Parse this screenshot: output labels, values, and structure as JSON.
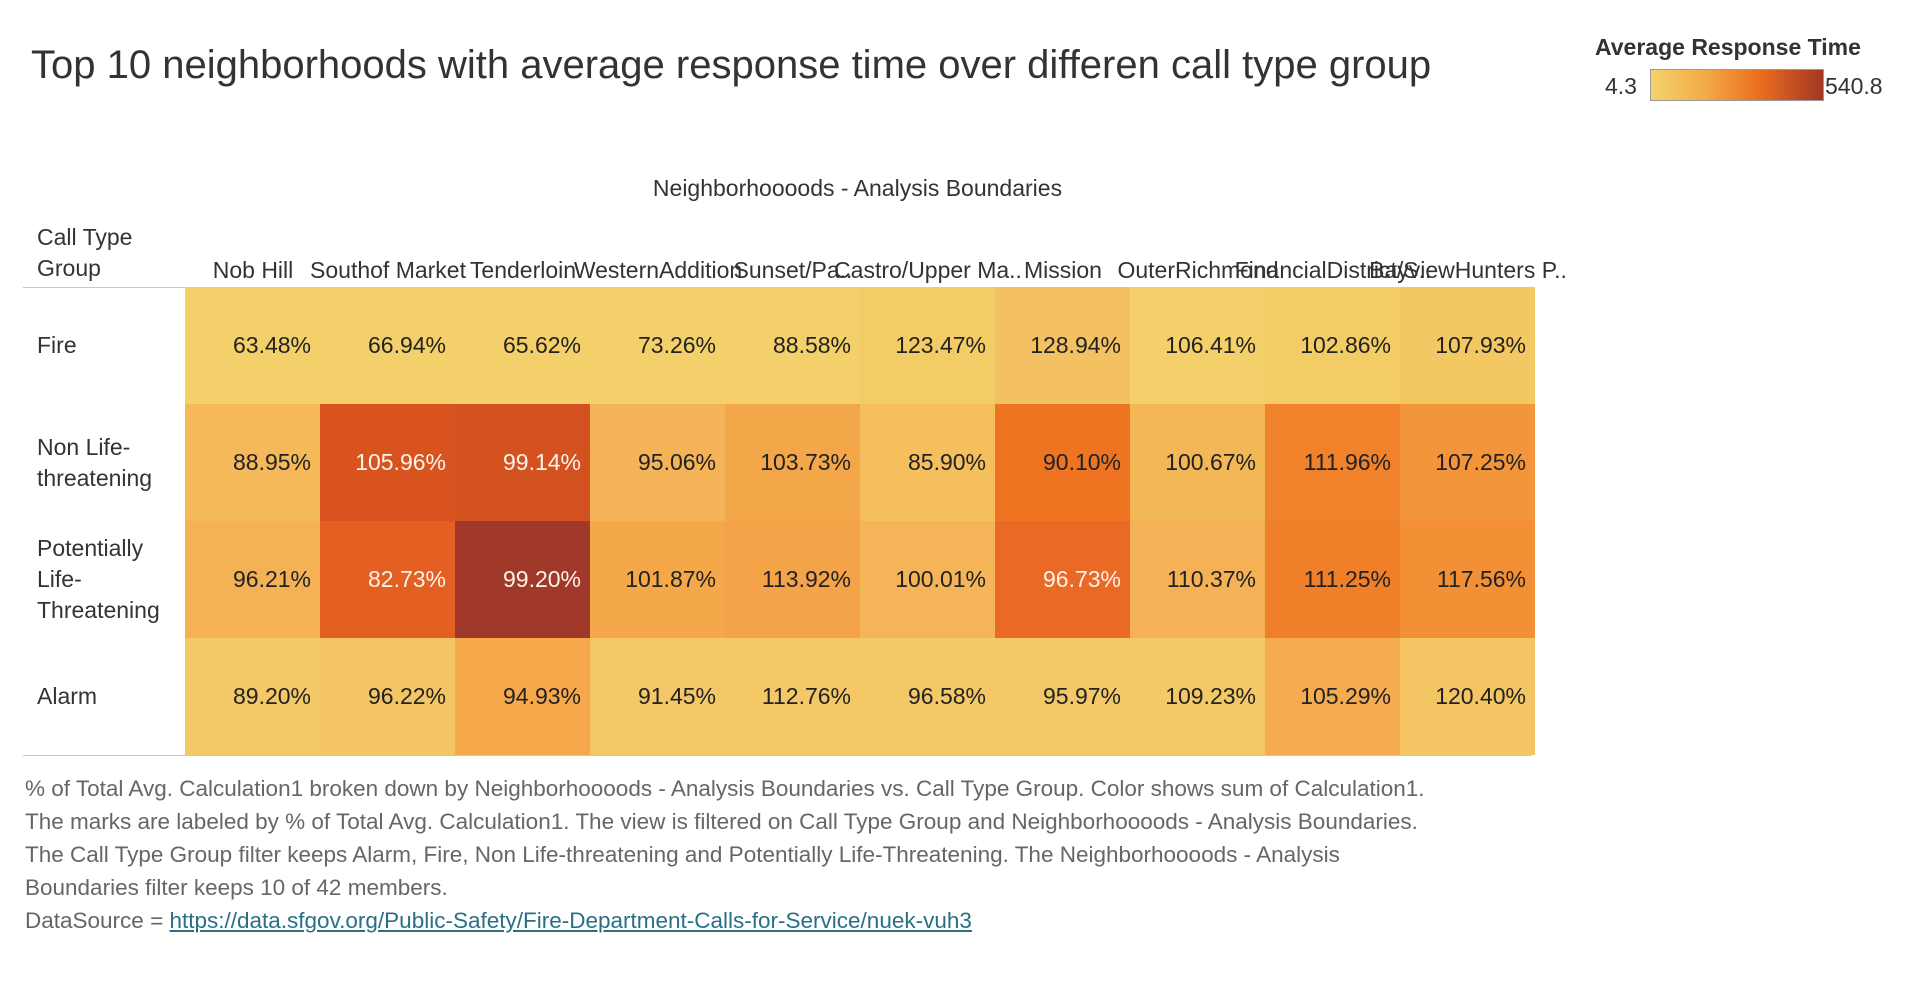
{
  "title": "Top 10 neighborhoods with average response time over differen call type group",
  "legend": {
    "title": "Average Response Time",
    "min": "4.3",
    "max": "540.8",
    "colors": [
      "#f4d36b",
      "#f3ad4a",
      "#ec7020",
      "#a23622"
    ]
  },
  "caption": {
    "lines": [
      "% of Total Avg. Calculation1 broken down by Neighborhoooods - Analysis Boundaries vs. Call Type Group.  Color shows sum of Calculation1.",
      "The marks are labeled by % of Total Avg. Calculation1. The view is filtered on Call Type Group and Neighborhoooods - Analysis Boundaries.",
      "The Call Type Group filter keeps Alarm, Fire, Non Life-threatening and Potentially Life-Threatening. The Neighborhoooods - Analysis",
      "Boundaries filter keeps 10 of 42 members."
    ],
    "source_prefix": "DataSource = ",
    "source_url": "https://data.sfgov.org/Public-Safety/Fire-Department-Calls-for-Service/nuek-vuh3"
  },
  "chart_data": {
    "type": "heatmap",
    "title": "Top 10 neighborhoods with average response time over differen call type group",
    "xlabel": "Neighborhoooods - Analysis Boundaries",
    "ylabel": "Call Type Group",
    "columns": [
      "Nob Hill",
      "South of Market",
      "Tenderloin",
      "Western Addition",
      "Sunset/Pa..",
      "Castro/ Upper Ma..",
      "Mission",
      "Outer Richmond",
      "Financial District/S..",
      "Bayview Hunters P.."
    ],
    "rows": [
      "Fire",
      "Non Life-threatening",
      "Potentially Life-Threatening",
      "Alarm"
    ],
    "labels": [
      [
        "63.48%",
        "66.94%",
        "65.62%",
        "73.26%",
        "88.58%",
        "123.47%",
        "128.94%",
        "106.41%",
        "102.86%",
        "107.93%"
      ],
      [
        "88.95%",
        "105.96%",
        "99.14%",
        "95.06%",
        "103.73%",
        "85.90%",
        "90.10%",
        "100.67%",
        "111.96%",
        "107.25%"
      ],
      [
        "96.21%",
        "82.73%",
        "99.20%",
        "101.87%",
        "113.92%",
        "100.01%",
        "96.73%",
        "110.37%",
        "111.25%",
        "117.56%"
      ],
      [
        "89.20%",
        "96.22%",
        "94.93%",
        "91.45%",
        "112.76%",
        "96.58%",
        "95.97%",
        "109.23%",
        "105.29%",
        "120.40%"
      ]
    ],
    "colors": [
      [
        "#f4d06a",
        "#f4d06a",
        "#f4d06a",
        "#f4d06a",
        "#f4d06a",
        "#f4cc66",
        "#f3c161",
        "#f4d06a",
        "#f4cc66",
        "#f3c762"
      ],
      [
        "#f5b95a",
        "#d9531f",
        "#d3521f",
        "#f4b357",
        "#f4a748",
        "#f5bf5d",
        "#ee7422",
        "#f4b756",
        "#ef822b",
        "#f3953a"
      ],
      [
        "#f5b255",
        "#e35f22",
        "#a0392a",
        "#f5a849",
        "#f5a348",
        "#f5b457",
        "#e96925",
        "#f5b156",
        "#ef7f29",
        "#f38f35"
      ],
      [
        "#f4c866",
        "#f4c563",
        "#f6a84b",
        "#f4c866",
        "#f4c866",
        "#f4c866",
        "#f4c866",
        "#f4c866",
        "#f5ab50",
        "#f4c563"
      ]
    ],
    "light_text_cells": [
      [
        1,
        1
      ],
      [
        1,
        2
      ],
      [
        2,
        1
      ],
      [
        2,
        2
      ],
      [
        2,
        6
      ]
    ],
    "grid": false,
    "legend_position": "top-right"
  }
}
